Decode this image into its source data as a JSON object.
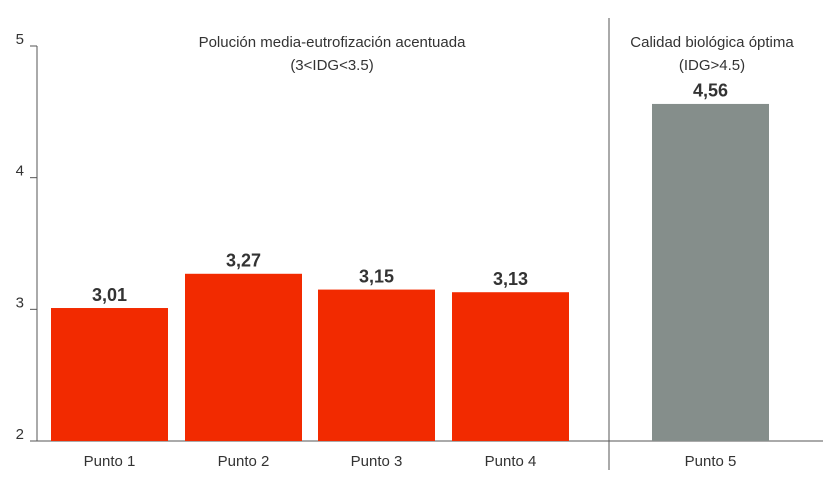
{
  "chart_data": {
    "type": "bar",
    "categories": [
      "Punto 1",
      "Punto 2",
      "Punto 3",
      "Punto 4",
      "Punto 5"
    ],
    "values": [
      3.01,
      3.27,
      3.15,
      3.13,
      4.56
    ],
    "value_labels": [
      "3,01",
      "3,27",
      "3,15",
      "3,13",
      "4,56"
    ],
    "colors": [
      "#f22a00",
      "#f22a00",
      "#f22a00",
      "#f22a00",
      "#858e8b"
    ],
    "ylim": [
      2,
      5
    ],
    "yticks": [
      2,
      3,
      4,
      5
    ],
    "annotations": [
      [
        "Polución media-eutrofización acentuada",
        "(3<IDG<3.5)"
      ],
      [
        "Calidad biológica óptima",
        "(IDG>4.5)"
      ]
    ]
  }
}
